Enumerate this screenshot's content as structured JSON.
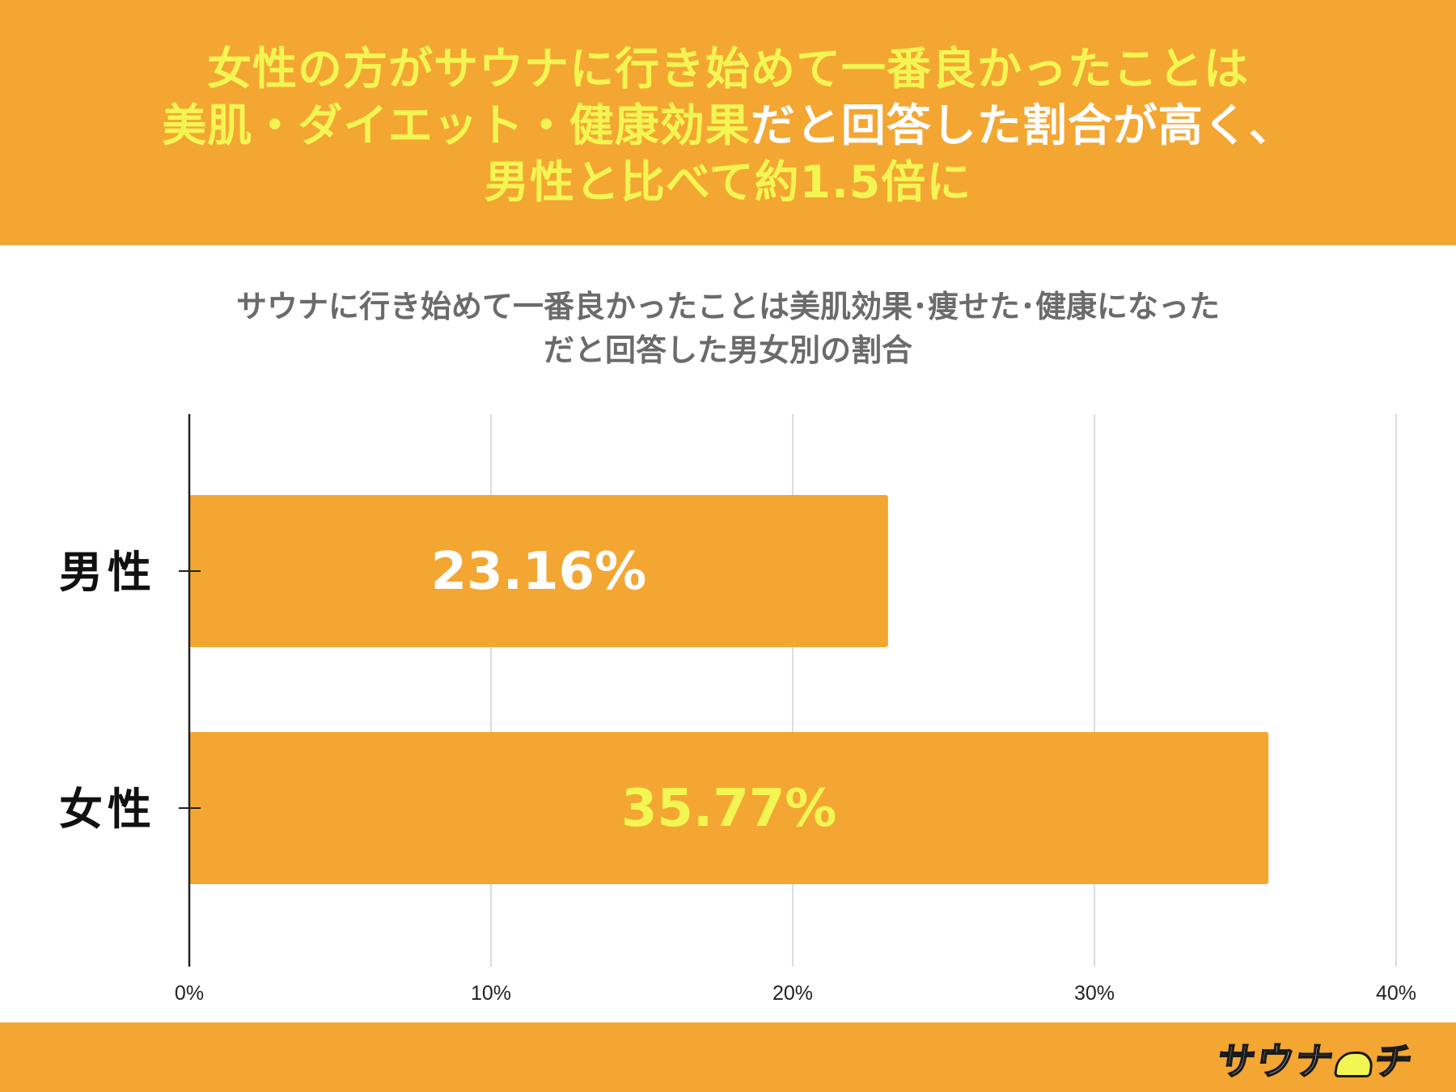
{
  "header": {
    "line1": "女性の方がサウナに行き始めて一番良かったことは",
    "line2_yellow": "美肌・ダイエット・健康効果",
    "line2_white": "だと回答した割合が高く、",
    "line3": "男性と比べて約1.5倍に"
  },
  "chart_title": {
    "line1": "サウナに行き始めて一番良かったことは美肌効果･痩せた･健康になった",
    "line2": "だと回答した男女別の割合"
  },
  "brand": {
    "logo_text": "サウナ",
    "logo_text2": "チ"
  },
  "colors": {
    "banner": "#f4a632",
    "bar": "#f4a632",
    "headline_yellow": "#f3f552",
    "label_male": "#ffffff",
    "label_female": "#f3f552",
    "grid": "#d0d0d0",
    "axis": "#222222"
  },
  "chart_data": {
    "type": "bar",
    "orientation": "horizontal",
    "categories": [
      "男性",
      "女性"
    ],
    "values": [
      23.16,
      35.77
    ],
    "data_labels": [
      "23.16%",
      "35.77%"
    ],
    "xlim": [
      0,
      40
    ],
    "xticks": [
      0,
      10,
      20,
      30,
      40
    ],
    "xtick_labels": [
      "0%",
      "10%",
      "20%",
      "30%",
      "40%"
    ],
    "grid": true,
    "legend": "none"
  }
}
